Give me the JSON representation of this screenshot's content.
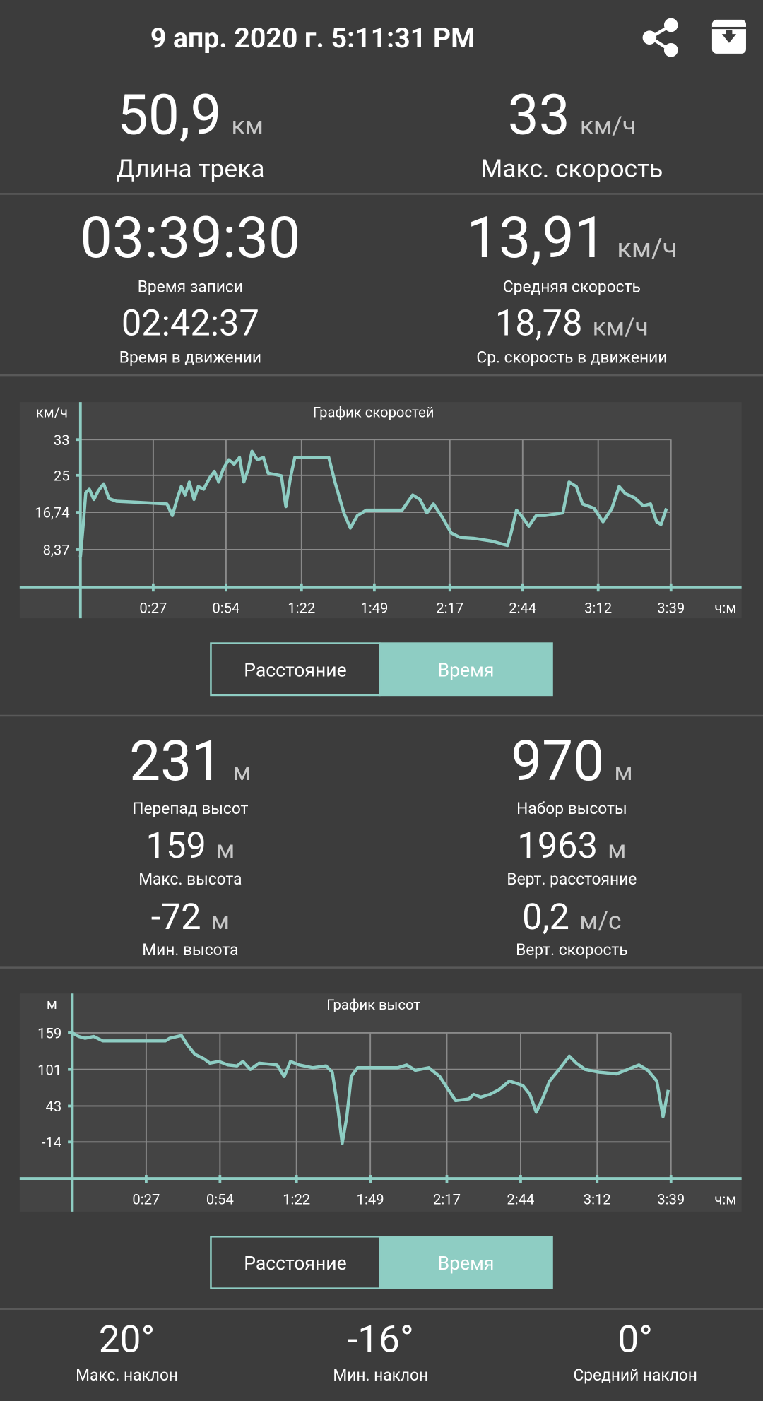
{
  "header": {
    "title": "9 апр. 2020 г. 5:11:31 PM"
  },
  "summary": [
    {
      "value": "50,9",
      "unit": "км",
      "label": "Длина трека"
    },
    {
      "value": "33",
      "unit": "км/ч",
      "label": "Макс. скорость"
    }
  ],
  "time_stats": [
    {
      "value": "03:39:30",
      "label": "Время записи"
    },
    {
      "value": "13,91",
      "unit": "км/ч",
      "label": "Средняя скорость"
    },
    {
      "value": "02:42:37",
      "label": "Время в движении"
    },
    {
      "value": "18,78",
      "unit": "км/ч",
      "label": "Ср. скорость в движении"
    }
  ],
  "chart_data": [
    {
      "type": "line",
      "title": "График скоростей",
      "y_label": "км/ч",
      "x_label": "ч:м",
      "x": [
        0,
        1.0,
        2.0,
        3.3,
        5.0,
        6.6,
        8.6,
        10.6,
        13.3,
        19.9,
        32.1,
        34.1,
        35.8,
        37.4,
        38.8,
        40.4,
        42.1,
        43.7,
        45.7,
        48.0,
        49.7,
        51.3,
        53.0,
        55.0,
        57.0,
        59.0,
        60.6,
        62.3,
        63.6,
        65.6,
        67.9,
        69.6,
        74.5,
        76.2,
        77.9,
        79.5,
        84.5,
        92.1,
        94.4,
        97.7,
        100.1,
        102.7,
        106.0,
        119.3,
        123.2,
        125.9,
        128.5,
        130.9,
        134.2,
        137.5,
        140.8,
        145.8,
        152.4,
        158.4,
        159.7,
        161.7,
        164.0,
        166.3,
        169.0,
        172.3,
        178.9,
        181.2,
        183.9,
        186.2,
        190.5,
        193.8,
        197.1,
        199.8,
        202.1,
        205.4,
        208.7,
        211.4,
        213.7,
        215.3,
        217.3
      ],
      "series": [
        {
          "color": "#8ecdc3",
          "values": [
            6.7,
            13.6,
            21.1,
            21.9,
            19.6,
            21.5,
            23.1,
            19.8,
            19.2,
            19.0,
            18.6,
            16.0,
            19.6,
            22.5,
            20.6,
            23.5,
            19.6,
            22.5,
            21.9,
            24.5,
            25.9,
            23.5,
            26.5,
            28.5,
            27.5,
            29.0,
            23.5,
            26.5,
            30.4,
            28.5,
            29.0,
            25.5,
            24.9,
            18.0,
            24.5,
            29.0,
            29.0,
            29.0,
            23.5,
            16.6,
            13.2,
            16.0,
            17.2,
            17.2,
            20.6,
            19.6,
            16.6,
            18.6,
            15.6,
            12.1,
            11.1,
            10.9,
            10.3,
            9.3,
            12.1,
            17.2,
            15.6,
            13.6,
            16.0,
            16.0,
            16.6,
            23.5,
            22.5,
            18.6,
            17.6,
            14.6,
            17.6,
            22.5,
            20.9,
            20.0,
            18.2,
            18.6,
            14.6,
            14.0,
            17.6
          ]
        }
      ],
      "xlim": [
        0,
        219
      ],
      "ylim": [
        0,
        33
      ],
      "xticks": [
        {
          "value": 27,
          "label": "0:27"
        },
        {
          "value": 54,
          "label": "0:54"
        },
        {
          "value": 82,
          "label": "1:22"
        },
        {
          "value": 109,
          "label": "1:49"
        },
        {
          "value": 137,
          "label": "2:17"
        },
        {
          "value": 164,
          "label": "2:44"
        },
        {
          "value": 192,
          "label": "3:12"
        },
        {
          "value": 219,
          "label": "3:39"
        }
      ],
      "yticks": [
        {
          "value": 8.37,
          "label": "8,37"
        },
        {
          "value": 16.74,
          "label": "16,74"
        },
        25,
        33
      ],
      "grid": true
    },
    {
      "type": "line",
      "title": "График высот",
      "y_label": "м",
      "x_label": "ч:м",
      "x": [
        0,
        2.3,
        4.6,
        7.8,
        11.1,
        16.0,
        34.0,
        35.6,
        39.9,
        42.2,
        44.8,
        48.1,
        50.3,
        53.6,
        56.9,
        60.2,
        62.4,
        65.1,
        68.3,
        74.9,
        77.5,
        79.8,
        83.0,
        87.9,
        92.8,
        95.1,
        97.1,
        98.7,
        100.4,
        102.0,
        104.3,
        119.0,
        122.3,
        125.5,
        130.4,
        134.4,
        137.6,
        140.2,
        145.1,
        146.8,
        149.4,
        152.7,
        155.9,
        159.9,
        164.8,
        167.4,
        169.7,
        172.0,
        174.6,
        177.8,
        181.8,
        184.4,
        187.6,
        192.6,
        199.1,
        202.4,
        207.3,
        210.5,
        213.8,
        216.1,
        218.0
      ],
      "series": [
        {
          "color": "#8ecdc3",
          "values": [
            159,
            153.3,
            150.5,
            153.3,
            146.3,
            146.3,
            146.3,
            150.5,
            154.8,
            139.2,
            125.0,
            118.0,
            110.9,
            113.7,
            108.1,
            106.6,
            113.7,
            101.0,
            110.9,
            108.1,
            89.7,
            113.7,
            108.1,
            103.8,
            106.6,
            96.7,
            40.1,
            -16.5,
            26.0,
            89.7,
            103.8,
            103.8,
            108.1,
            99.6,
            103.8,
            89.7,
            68.4,
            51.5,
            54.3,
            61.4,
            57.1,
            61.4,
            68.4,
            82.6,
            75.5,
            61.4,
            33.1,
            54.3,
            82.6,
            99.6,
            122.2,
            110.9,
            101.0,
            96.7,
            93.9,
            99.6,
            108.1,
            99.6,
            82.6,
            26.0,
            68.4
          ]
        }
      ],
      "xlim": [
        0,
        219
      ],
      "ylim": [
        -72,
        159
      ],
      "xticks": [
        {
          "value": 27,
          "label": "0:27"
        },
        {
          "value": 54,
          "label": "0:54"
        },
        {
          "value": 82,
          "label": "1:22"
        },
        {
          "value": 109,
          "label": "1:49"
        },
        {
          "value": 137,
          "label": "2:17"
        },
        {
          "value": 164,
          "label": "2:44"
        },
        {
          "value": 192,
          "label": "3:12"
        },
        {
          "value": 219,
          "label": "3:39"
        }
      ],
      "yticks": [
        -14,
        43,
        101,
        159
      ],
      "grid": true
    }
  ],
  "toggles": [
    {
      "options": [
        "Расстояние",
        "Время"
      ],
      "selected": 1
    },
    {
      "options": [
        "Расстояние",
        "Время"
      ],
      "selected": 1
    }
  ],
  "altitude_stats": [
    {
      "value": "231",
      "unit": "м",
      "label": "Перепад высот"
    },
    {
      "value": "970",
      "unit": "м",
      "label": "Набор высоты"
    },
    {
      "value": "159",
      "unit": "м",
      "label": "Макс. высота"
    },
    {
      "value": "1963",
      "unit": "м",
      "label": "Верт. расстояние"
    },
    {
      "value": "-72",
      "unit": "м",
      "label": "Мин. высота"
    },
    {
      "value": "0,2",
      "unit": "м/с",
      "label": "Верт. скорость"
    }
  ],
  "slope_stats": [
    {
      "value": "20°",
      "label": "Макс. наклон"
    },
    {
      "value": "-16°",
      "label": "Мин. наклон"
    },
    {
      "value": "0°",
      "label": "Средний наклон"
    }
  ]
}
